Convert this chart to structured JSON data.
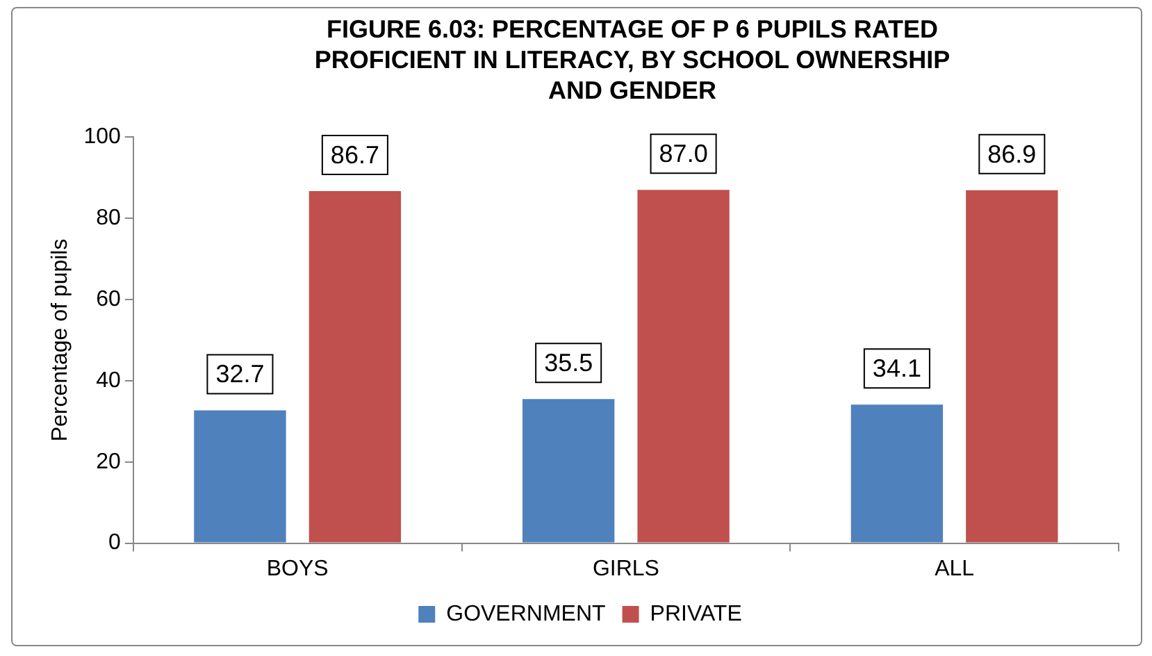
{
  "chart_data": {
    "type": "bar",
    "title": "FIGURE 6.03: PERCENTAGE OF P 6 PUPILS RATED PROFICIENT IN LITERACY, BY SCHOOL OWNERSHIP AND GENDER",
    "ylabel": "Percentage of pupils",
    "categories": [
      "BOYS",
      "GIRLS",
      "ALL"
    ],
    "series": [
      {
        "name": "GOVERNMENT",
        "color": "#4f81bd",
        "values": [
          32.7,
          35.5,
          34.1
        ],
        "value_labels": [
          "32.7",
          "35.5",
          "34.1"
        ]
      },
      {
        "name": "PRIVATE",
        "color": "#c0504d",
        "values": [
          86.7,
          87.0,
          86.9
        ],
        "value_labels": [
          "86.7",
          "87.0",
          "86.9"
        ]
      }
    ],
    "ylim": [
      0,
      100
    ],
    "yticks": [
      0,
      20,
      40,
      60,
      80,
      100
    ],
    "grid": false,
    "legend": "bottom"
  }
}
